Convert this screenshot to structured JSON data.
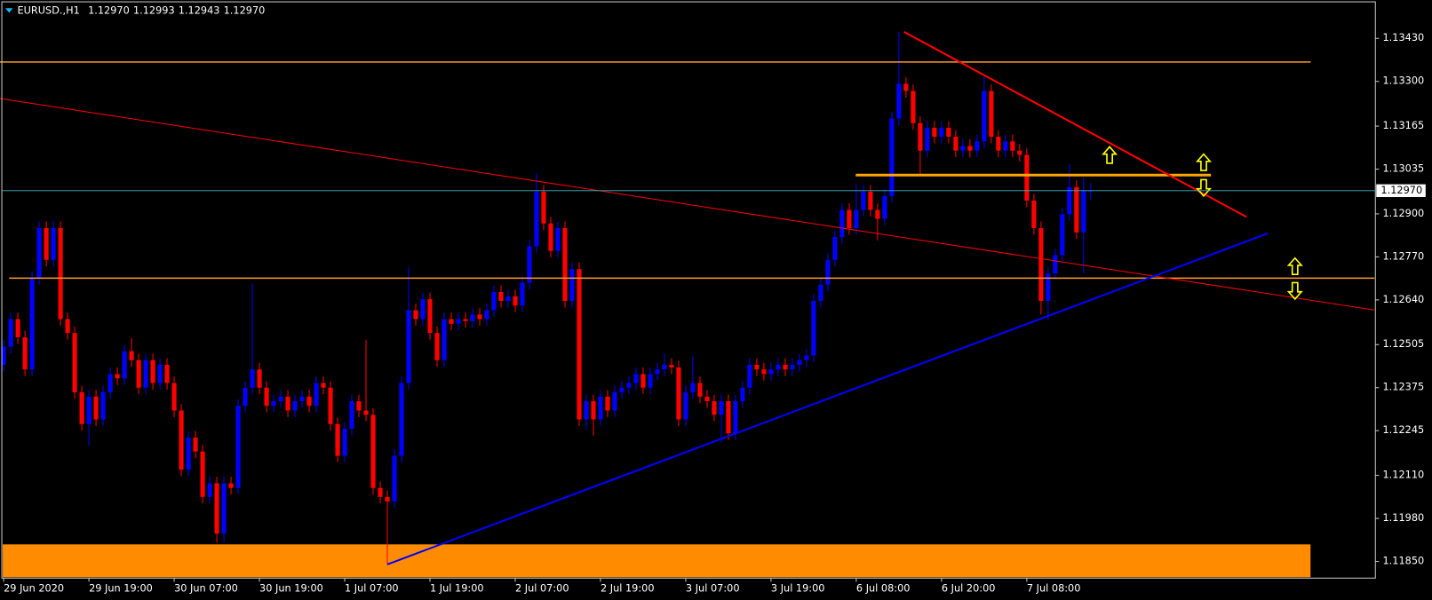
{
  "chart_data": {
    "type": "candlestick",
    "title": "EURUSD.,H1",
    "header_values": [
      "1.12970",
      "1.12993",
      "1.12943",
      "1.12970"
    ],
    "up_color": "#0000ff",
    "down_color": "#ff0000",
    "ylim": [
      1.11739,
      1.13546
    ],
    "yticks": [
      {
        "value": 1.1343,
        "label": "1.13430"
      },
      {
        "value": 1.133,
        "label": "1.13300"
      },
      1.13165,
      1.13035,
      {
        "value": 1.129,
        "label": "1.12900"
      },
      {
        "value": 1.1277,
        "label": "1.12770"
      },
      {
        "value": 1.1264,
        "label": "1.12640"
      },
      1.12505,
      1.12375,
      1.12245,
      {
        "value": 1.1211,
        "label": "1.12110"
      },
      {
        "value": 1.1198,
        "label": "1.11980"
      },
      {
        "value": 1.1185,
        "label": "1.11850"
      }
    ],
    "current_price": {
      "value": 1.1297,
      "label": "1.12970"
    },
    "categories": [
      "29 Jun 2020",
      null,
      null,
      null,
      null,
      null,
      null,
      null,
      null,
      null,
      null,
      null,
      "29 Jun 19:00",
      null,
      null,
      null,
      null,
      null,
      null,
      null,
      null,
      null,
      null,
      null,
      "30 Jun 07:00",
      null,
      null,
      null,
      null,
      null,
      null,
      null,
      null,
      null,
      null,
      null,
      "30 Jun 19:00",
      null,
      null,
      null,
      null,
      null,
      null,
      null,
      null,
      null,
      null,
      null,
      "1 Jul 07:00",
      null,
      null,
      null,
      null,
      null,
      null,
      null,
      null,
      null,
      null,
      null,
      "1 Jul 19:00",
      null,
      null,
      null,
      null,
      null,
      null,
      null,
      null,
      null,
      null,
      null,
      "2 Jul 07:00",
      null,
      null,
      null,
      null,
      null,
      null,
      null,
      null,
      null,
      null,
      null,
      "2 Jul 19:00",
      null,
      null,
      null,
      null,
      null,
      null,
      null,
      null,
      null,
      null,
      null,
      "3 Jul 07:00",
      null,
      null,
      null,
      null,
      null,
      null,
      null,
      null,
      null,
      null,
      null,
      "3 Jul 19:00",
      null,
      null,
      null,
      null,
      null,
      null,
      null,
      null,
      null,
      null,
      null,
      "6 Jul 08:00",
      null,
      null,
      null,
      null,
      null,
      null,
      null,
      null,
      null,
      null,
      null,
      "6 Jul 20:00",
      null,
      null,
      null,
      null,
      null,
      null,
      null,
      null,
      null,
      null,
      null,
      "7 Jul 08:00",
      null,
      null,
      null,
      null,
      null,
      null,
      null,
      null,
      null
    ],
    "open": [
      1.12444,
      1.12499,
      1.12582,
      1.12527,
      1.1243,
      1.12706,
      1.12857,
      1.12761,
      1.12857,
      1.12582,
      1.1254,
      1.12361,
      1.12265,
      1.12348,
      1.12279,
      1.12361,
      1.12416,
      1.12403,
      1.12485,
      1.12458,
      1.12375,
      1.12458,
      1.12389,
      1.12444,
      1.12389,
      1.12306,
      1.12127,
      1.12224,
      1.12182,
      1.12045,
      1.12086,
      1.11934,
      1.12086,
      1.12072,
      1.1232,
      1.12375,
      1.1243,
      1.12375,
      1.1232,
      1.12334,
      1.12348,
      1.12306,
      1.12334,
      1.12348,
      1.1232,
      1.12389,
      1.12375,
      1.12265,
      1.12169,
      1.12251,
      1.12334,
      1.12306,
      1.12293,
      1.12072,
      1.12045,
      1.12031,
      1.12169,
      1.12389,
      1.12609,
      1.12582,
      1.12642,
      1.1254,
      1.12458,
      1.12582,
      1.12568,
      1.12582,
      1.12576,
      1.12596,
      1.12582,
      1.12609,
      1.12664,
      1.12637,
      1.12651,
      1.12623,
      1.12692,
      1.12802,
      1.12967,
      1.12871,
      1.12788,
      1.12857,
      1.12637,
      1.12733,
      1.12279,
      1.12334,
      1.12279,
      1.12348,
      1.12306,
      1.12361,
      1.12375,
      1.12389,
      1.12416,
      1.12375,
      1.12416,
      1.1243,
      1.12444,
      1.12436,
      1.12279,
      1.12361,
      1.12389,
      1.12348,
      1.12334,
      1.12293,
      1.12334,
      1.12237,
      1.12334,
      1.12375,
      1.12444,
      1.1243,
      1.12416,
      1.1243,
      1.12444,
      1.1243,
      1.12444,
      1.12458,
      1.12472,
      1.12637,
      1.12686,
      1.12761,
      1.1283,
      1.12912,
      1.12857,
      1.12912,
      1.12967,
      1.12912,
      1.12885,
      1.12954,
      1.13188,
      1.13293,
      1.13271,
      1.13174,
      1.13091,
      1.1316,
      1.13133,
      1.1316,
      1.13133,
      1.13091,
      1.13105,
      1.13091,
      1.13119,
      1.13271,
      1.13133,
      1.13091,
      1.13119,
      1.13091,
      1.13078,
      1.1294,
      1.12857,
      1.12637,
      1.1272,
      1.12775,
      1.12899,
      1.12981,
      1.12844,
      1.1297
    ],
    "high": [
      1.12519,
      1.12602,
      1.12602,
      1.12547,
      1.12726,
      1.12877,
      1.12877,
      1.12877,
      1.12877,
      1.12602,
      1.1256,
      1.12381,
      1.12368,
      1.12368,
      1.12381,
      1.12436,
      1.12436,
      1.12505,
      1.12525,
      1.12478,
      1.12478,
      1.12478,
      1.12464,
      1.12464,
      1.12409,
      1.12326,
      1.12244,
      1.12244,
      1.12202,
      1.12106,
      1.12106,
      1.12106,
      1.12106,
      1.1234,
      1.12395,
      1.1269,
      1.1245,
      1.12395,
      1.12354,
      1.12368,
      1.12368,
      1.12354,
      1.12368,
      1.12368,
      1.12409,
      1.12409,
      1.12395,
      1.12285,
      1.12271,
      1.12354,
      1.12354,
      1.1252,
      1.12313,
      1.12092,
      1.12065,
      1.12189,
      1.12409,
      1.1274,
      1.12629,
      1.12662,
      1.12662,
      1.1256,
      1.12602,
      1.12602,
      1.12602,
      1.12602,
      1.12616,
      1.12616,
      1.12629,
      1.12684,
      1.12684,
      1.12671,
      1.12671,
      1.12712,
      1.12822,
      1.13023,
      1.12987,
      1.12891,
      1.12877,
      1.12877,
      1.12753,
      1.12753,
      1.12354,
      1.12354,
      1.12368,
      1.12368,
      1.12381,
      1.12395,
      1.12409,
      1.12436,
      1.12436,
      1.12436,
      1.1245,
      1.12478,
      1.12464,
      1.12456,
      1.12381,
      1.12472,
      1.12409,
      1.12368,
      1.12354,
      1.12354,
      1.12354,
      1.12354,
      1.12395,
      1.12464,
      1.12464,
      1.1245,
      1.1245,
      1.12464,
      1.12464,
      1.12464,
      1.12478,
      1.12492,
      1.12657,
      1.12706,
      1.12781,
      1.1285,
      1.12932,
      1.12932,
      1.1299,
      1.12987,
      1.12987,
      1.12932,
      1.12974,
      1.13208,
      1.1345,
      1.13313,
      1.13291,
      1.13194,
      1.1318,
      1.1318,
      1.1318,
      1.1318,
      1.13153,
      1.13125,
      1.13125,
      1.13139,
      1.1332,
      1.13291,
      1.13153,
      1.13139,
      1.13139,
      1.13111,
      1.13098,
      1.1296,
      1.12877,
      1.1274,
      1.12795,
      1.12919,
      1.1305,
      1.13001,
      1.1301,
      1.12993
    ],
    "low": [
      1.12424,
      1.12479,
      1.12507,
      1.1241,
      1.1241,
      1.12686,
      1.12741,
      1.12741,
      1.12562,
      1.1252,
      1.12341,
      1.12245,
      1.122,
      1.12259,
      1.12259,
      1.12341,
      1.12383,
      1.12383,
      1.12438,
      1.12355,
      1.12355,
      1.12369,
      1.12369,
      1.12369,
      1.12286,
      1.12107,
      1.12107,
      1.12162,
      1.12025,
      1.12025,
      1.11907,
      1.11907,
      1.12052,
      1.12052,
      1.123,
      1.12355,
      1.12355,
      1.123,
      1.123,
      1.12314,
      1.12286,
      1.12286,
      1.12314,
      1.123,
      1.123,
      1.12355,
      1.12245,
      1.12149,
      1.12149,
      1.12231,
      1.12286,
      1.12273,
      1.12052,
      1.12025,
      1.11841,
      1.12011,
      1.12149,
      1.12369,
      1.12562,
      1.12562,
      1.1252,
      1.12438,
      1.12438,
      1.12548,
      1.12548,
      1.12556,
      1.12556,
      1.12562,
      1.12562,
      1.12589,
      1.12617,
      1.12617,
      1.12603,
      1.12603,
      1.12672,
      1.12782,
      1.12851,
      1.12768,
      1.12768,
      1.12617,
      1.12617,
      1.12259,
      1.1225,
      1.1223,
      1.12259,
      1.12286,
      1.12286,
      1.12341,
      1.12355,
      1.12369,
      1.12355,
      1.12355,
      1.12396,
      1.1241,
      1.12416,
      1.12259,
      1.12259,
      1.12341,
      1.12328,
      1.12314,
      1.12273,
      1.1221,
      1.12217,
      1.12217,
      1.12314,
      1.12355,
      1.1241,
      1.12396,
      1.12396,
      1.1241,
      1.1241,
      1.1241,
      1.12424,
      1.12438,
      1.12452,
      1.12617,
      1.12666,
      1.12741,
      1.1281,
      1.12837,
      1.12837,
      1.12892,
      1.12892,
      1.1282,
      1.12865,
      1.12934,
      1.13168,
      1.13251,
      1.13154,
      1.1302,
      1.13071,
      1.13113,
      1.13113,
      1.13113,
      1.13071,
      1.13071,
      1.13071,
      1.13071,
      1.13099,
      1.13113,
      1.13071,
      1.13071,
      1.13071,
      1.13058,
      1.1292,
      1.12837,
      1.12596,
      1.1258,
      1.127,
      1.12755,
      1.12879,
      1.12824,
      1.1272,
      1.12943
    ],
    "close": [
      1.12499,
      1.12582,
      1.12527,
      1.1243,
      1.12706,
      1.12857,
      1.12761,
      1.12857,
      1.12582,
      1.1254,
      1.12361,
      1.12265,
      1.12348,
      1.12279,
      1.12361,
      1.12416,
      1.12403,
      1.12485,
      1.12458,
      1.12375,
      1.12458,
      1.12389,
      1.12444,
      1.12389,
      1.12306,
      1.12127,
      1.12224,
      1.12182,
      1.12045,
      1.12086,
      1.11934,
      1.12086,
      1.12072,
      1.1232,
      1.12375,
      1.1243,
      1.12375,
      1.1232,
      1.12334,
      1.12348,
      1.12306,
      1.12334,
      1.12348,
      1.1232,
      1.12389,
      1.12375,
      1.12265,
      1.12169,
      1.12251,
      1.12334,
      1.12306,
      1.12293,
      1.12072,
      1.12045,
      1.12031,
      1.12169,
      1.12389,
      1.12609,
      1.12582,
      1.12642,
      1.1254,
      1.12458,
      1.12582,
      1.12568,
      1.12582,
      1.12576,
      1.12596,
      1.12582,
      1.12609,
      1.12664,
      1.12637,
      1.12651,
      1.12623,
      1.12692,
      1.12802,
      1.12967,
      1.12871,
      1.12788,
      1.12857,
      1.12637,
      1.12733,
      1.12279,
      1.12334,
      1.12279,
      1.12348,
      1.12306,
      1.12361,
      1.12375,
      1.12389,
      1.12416,
      1.12375,
      1.12416,
      1.1243,
      1.12444,
      1.12436,
      1.12279,
      1.12361,
      1.12389,
      1.12348,
      1.12334,
      1.12293,
      1.12334,
      1.12237,
      1.12334,
      1.12375,
      1.12444,
      1.1243,
      1.12416,
      1.1243,
      1.12444,
      1.1243,
      1.12444,
      1.12458,
      1.12472,
      1.12637,
      1.12686,
      1.12761,
      1.1283,
      1.12912,
      1.12857,
      1.12912,
      1.12967,
      1.12912,
      1.12885,
      1.12954,
      1.13188,
      1.13293,
      1.13271,
      1.13174,
      1.13091,
      1.1316,
      1.13133,
      1.1316,
      1.13133,
      1.13091,
      1.13105,
      1.13091,
      1.13119,
      1.13271,
      1.13133,
      1.13091,
      1.13119,
      1.13091,
      1.13078,
      1.1294,
      1.12857,
      1.12637,
      1.1272,
      1.12775,
      1.12899,
      1.12981,
      1.12844,
      1.1297,
      1.1297
    ]
  }
}
